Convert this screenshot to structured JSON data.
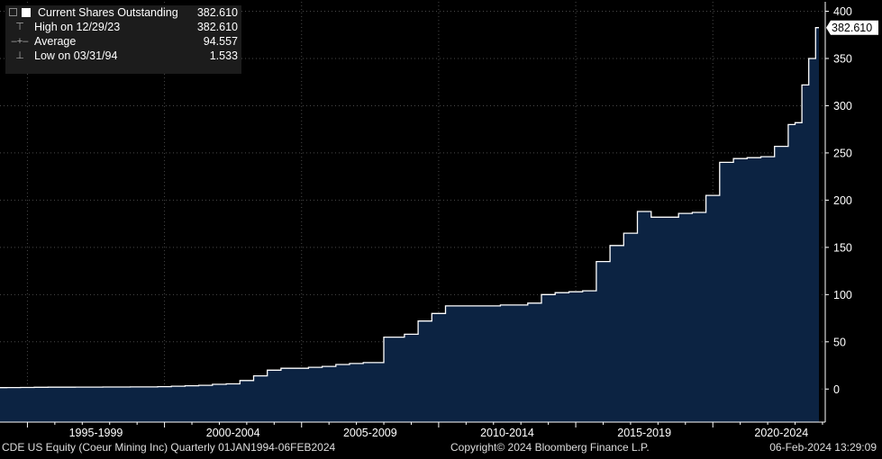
{
  "legend": {
    "series_label": "Current Shares Outstanding",
    "series_value": "382.610",
    "high_label": "High on 12/29/23",
    "high_value": "382.610",
    "avg_label": "Average",
    "avg_value": "94.557",
    "low_label": "Low on 03/31/94",
    "low_value": "1.533"
  },
  "footer": {
    "left": "CDE US Equity (Coeur Mining Inc)  Quarterly 01JAN1994-06FEB2024",
    "center": "Copyright© 2024 Bloomberg Finance L.P.",
    "right": "06-Feb-2024 13:29:09"
  },
  "colors": {
    "background": "#000000",
    "area_fill": "#0c2342",
    "line": "#ffffff",
    "grid": "#4a4a4a",
    "axis_text": "#ffffff"
  },
  "chart_data": {
    "type": "area",
    "title": "",
    "xlabel": "",
    "ylabel": "",
    "ylim": [
      -35,
      410
    ],
    "y_ticks": [
      0,
      50,
      100,
      150,
      200,
      250,
      300,
      350,
      400
    ],
    "x_tick_labels": [
      "1995-1999",
      "2000-2004",
      "2005-2009",
      "2010-2014",
      "2015-2019",
      "2020-2024"
    ],
    "last_value_label": "382.610",
    "grid": true,
    "y_axis_side": "right",
    "series": [
      {
        "name": "Current Shares Outstanding",
        "x": [
          "1994-Q1",
          "1994-Q2",
          "1994-Q4",
          "1995-Q2",
          "1995-Q4",
          "1996-Q2",
          "1996-Q4",
          "1997-Q2",
          "1997-Q4",
          "1998-Q2",
          "1998-Q4",
          "1999-Q2",
          "1999-Q4",
          "2000-Q2",
          "2000-Q4",
          "2001-Q2",
          "2001-Q4",
          "2002-Q2",
          "2002-Q4",
          "2003-Q2",
          "2003-Q4",
          "2004-Q2",
          "2004-Q4",
          "2005-Q2",
          "2005-Q4",
          "2006-Q2",
          "2006-Q4",
          "2007-Q2",
          "2007-Q4",
          "2008-Q1",
          "2008-Q2",
          "2008-Q4",
          "2009-Q2",
          "2009-Q4",
          "2010-Q2",
          "2010-Q4",
          "2011-Q2",
          "2011-Q4",
          "2012-Q2",
          "2012-Q4",
          "2013-Q2",
          "2013-Q4",
          "2014-Q2",
          "2014-Q4",
          "2015-Q2",
          "2015-Q4",
          "2016-Q2",
          "2016-Q4",
          "2017-Q2",
          "2017-Q4",
          "2018-Q2",
          "2018-Q4",
          "2019-Q2",
          "2019-Q4",
          "2020-Q2",
          "2020-Q4",
          "2021-Q2",
          "2021-Q4",
          "2022-Q2",
          "2022-Q4",
          "2023-Q1",
          "2023-Q2",
          "2023-Q3",
          "2023-Q4"
        ],
        "values": [
          1.533,
          1.6,
          1.7,
          1.9,
          2.0,
          2.0,
          2.1,
          2.1,
          2.2,
          2.2,
          2.3,
          2.3,
          2.5,
          3.0,
          3.5,
          4.0,
          5.0,
          5.5,
          9,
          14,
          20,
          22,
          22,
          23,
          24,
          26,
          27,
          28,
          28,
          55,
          55,
          58,
          72,
          80,
          88,
          88,
          88,
          88,
          89,
          89,
          91,
          100,
          102,
          103,
          104,
          135,
          152,
          165,
          188,
          182,
          182,
          186,
          187,
          205,
          240,
          244,
          245,
          246,
          257,
          280,
          282,
          322,
          350,
          382.61
        ]
      }
    ]
  }
}
